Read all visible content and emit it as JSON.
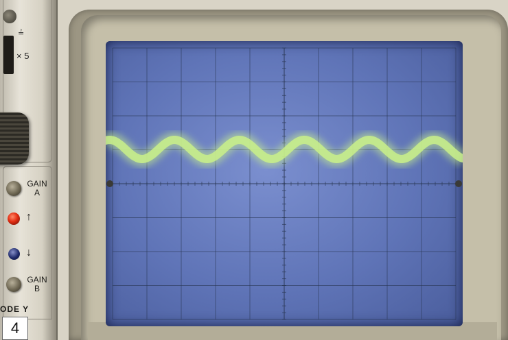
{
  "panel": {
    "x5_label": "× 5",
    "gain_a_label": "GAIN",
    "gain_a_sub": "A",
    "gain_b_label": "GAIN",
    "gain_b_sub": "B",
    "up_arrow": "↑",
    "down_arrow": "↓",
    "mode_label": "ODE Y"
  },
  "figure_number": "4",
  "colors": {
    "trace": "#c9f08a",
    "screen": "#6b80c2",
    "graticule": "#27334f"
  },
  "scope_display": {
    "grid_divisions_x": 10,
    "grid_divisions_y": 8,
    "trace_cycles": 5.5
  }
}
